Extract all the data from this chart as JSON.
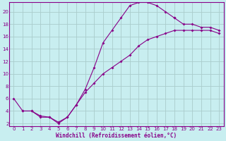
{
  "xlabel": "Windchill (Refroidissement éolien,°C)",
  "bg_color": "#c8eef0",
  "line_color": "#880088",
  "grid_color": "#aacccc",
  "xlim": [
    -0.5,
    23.5
  ],
  "ylim": [
    1.5,
    21.5
  ],
  "xticks": [
    0,
    1,
    2,
    3,
    4,
    5,
    6,
    7,
    8,
    9,
    10,
    11,
    12,
    13,
    14,
    15,
    16,
    17,
    18,
    19,
    20,
    21,
    22,
    23
  ],
  "yticks": [
    2,
    4,
    6,
    8,
    10,
    12,
    14,
    16,
    18,
    20
  ],
  "curve1_x": [
    1,
    2,
    3,
    4,
    5,
    6,
    7,
    8,
    9,
    10,
    11,
    12,
    13,
    14,
    15,
    16,
    17,
    18
  ],
  "curve1_y": [
    4,
    4,
    3,
    3,
    2,
    3,
    5,
    7.5,
    11,
    15,
    17,
    19,
    21,
    21.5,
    21.5,
    21,
    20,
    19
  ],
  "curve2_x": [
    18,
    19,
    20,
    21,
    22,
    23
  ],
  "curve2_y": [
    19,
    18,
    18,
    17.5,
    17.5,
    17
  ],
  "curve3_x": [
    0,
    1,
    2,
    3,
    4,
    5,
    6,
    7,
    8,
    9,
    10,
    11,
    12,
    13,
    14,
    15,
    16,
    17,
    18,
    19,
    20,
    21,
    22,
    23
  ],
  "curve3_y": [
    6,
    4,
    4,
    3.2,
    3,
    2.2,
    3,
    5,
    7,
    8.5,
    10,
    11,
    12,
    13,
    14.5,
    15.5,
    16,
    16.5,
    17,
    17,
    17,
    17,
    17,
    16.5
  ]
}
